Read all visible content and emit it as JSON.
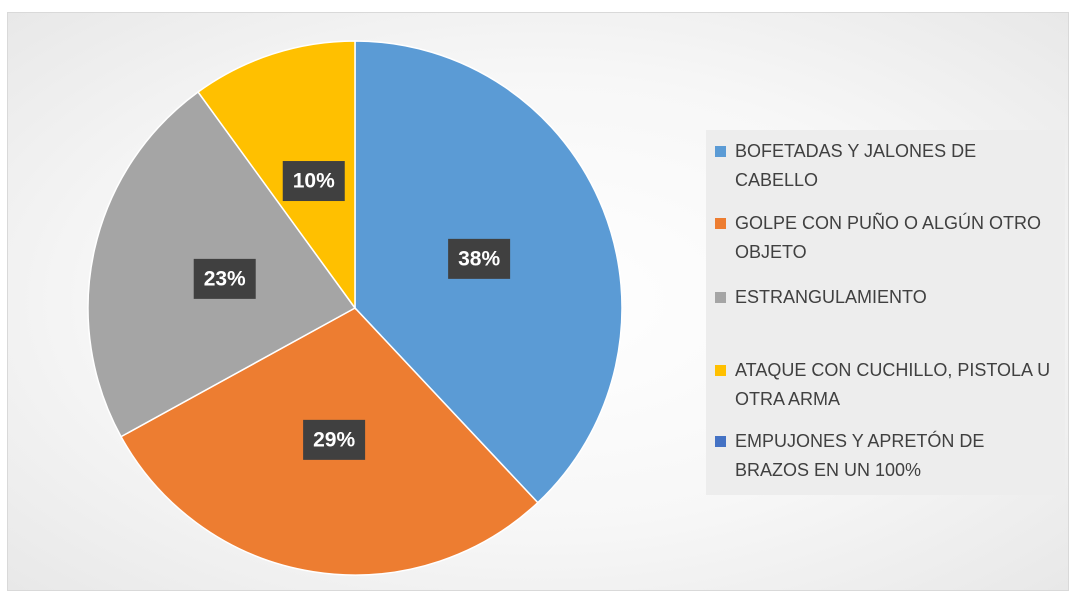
{
  "chart_data": {
    "type": "pie",
    "categories": [
      "BOFETADAS Y JALONES DE CABELLO",
      "GOLPE CON PUÑO O ALGÚN OTRO OBJETO",
      "ESTRANGULAMIENTO",
      "ATAQUE CON CUCHILLO, PISTOLA U OTRA ARMA",
      "EMPUJONES Y APRETÓN DE BRAZOS EN UN 100%"
    ],
    "values": [
      38,
      29,
      23,
      10,
      0
    ],
    "value_labels": [
      "38%",
      "29%",
      "23%",
      "10%",
      null
    ],
    "colors": [
      "#5b9bd5",
      "#ed7d31",
      "#a5a5a5",
      "#ffc000",
      "#4472c4"
    ],
    "legend": "right"
  }
}
